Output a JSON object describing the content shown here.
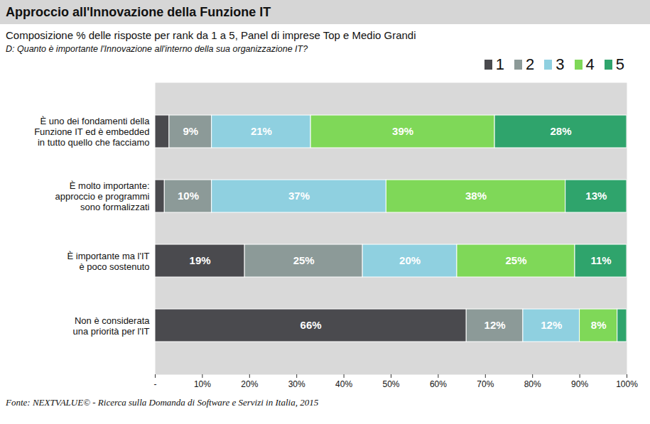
{
  "chart_data": {
    "type": "bar",
    "title": "Approccio all'Innovazione della Funzione IT",
    "subtitle": "Composizione % delle risposte per rank da 1 a 5, Panel di imprese Top e Medio Grandi",
    "question": "D: Quanto è importante l'Innovazione all'interno della sua organizzazione IT?",
    "source": "Fonte: NEXTVALUE© - Ricerca sulla Domanda di Software e Servizi in Italia, 2015",
    "orientation": "horizontal",
    "stacked": true,
    "data_labels": true,
    "legend": "top-right",
    "grid": false,
    "categories": [
      "È uno dei fondamenti della\nFunzione IT ed è embedded\nin tutto quello che facciamo",
      "È molto importante:\napproccio e programmi\nsono formalizzati",
      "È importante ma l'IT\nè poco sostenuto",
      "Non è considerata\nuna priorità per l'IT"
    ],
    "series": [
      {
        "name": "1",
        "color": "#4a4a4e",
        "values": [
          3,
          2,
          19,
          66
        ],
        "value_labels": [
          null,
          null,
          "19%",
          "66%"
        ]
      },
      {
        "name": "2",
        "color": "#8c9a98",
        "values": [
          9,
          10,
          25,
          12
        ],
        "value_labels": [
          "9%",
          "10%",
          "25%",
          "12%"
        ]
      },
      {
        "name": "3",
        "color": "#8fd0e0",
        "values": [
          21,
          37,
          20,
          12
        ],
        "value_labels": [
          "21%",
          "37%",
          "20%",
          "12%"
        ]
      },
      {
        "name": "4",
        "color": "#7fd858",
        "values": [
          39,
          38,
          25,
          8
        ],
        "value_labels": [
          "39%",
          "38%",
          "25%",
          "8%"
        ]
      },
      {
        "name": "5",
        "color": "#2fa46c",
        "values": [
          28,
          13,
          11,
          2
        ],
        "value_labels": [
          "28%",
          "13%",
          "11%",
          null
        ]
      }
    ],
    "xlim": [
      0,
      100
    ],
    "xticks": [
      {
        "value": 0,
        "label": "-"
      },
      {
        "value": 10,
        "label": "10%"
      },
      {
        "value": 20,
        "label": "20%"
      },
      {
        "value": 30,
        "label": "30%"
      },
      {
        "value": 40,
        "label": "40%"
      },
      {
        "value": 50,
        "label": "50%"
      },
      {
        "value": 60,
        "label": "60%"
      },
      {
        "value": 70,
        "label": "70%"
      },
      {
        "value": 80,
        "label": "80%"
      },
      {
        "value": 90,
        "label": "90%"
      },
      {
        "value": 100,
        "label": "100%"
      }
    ]
  }
}
